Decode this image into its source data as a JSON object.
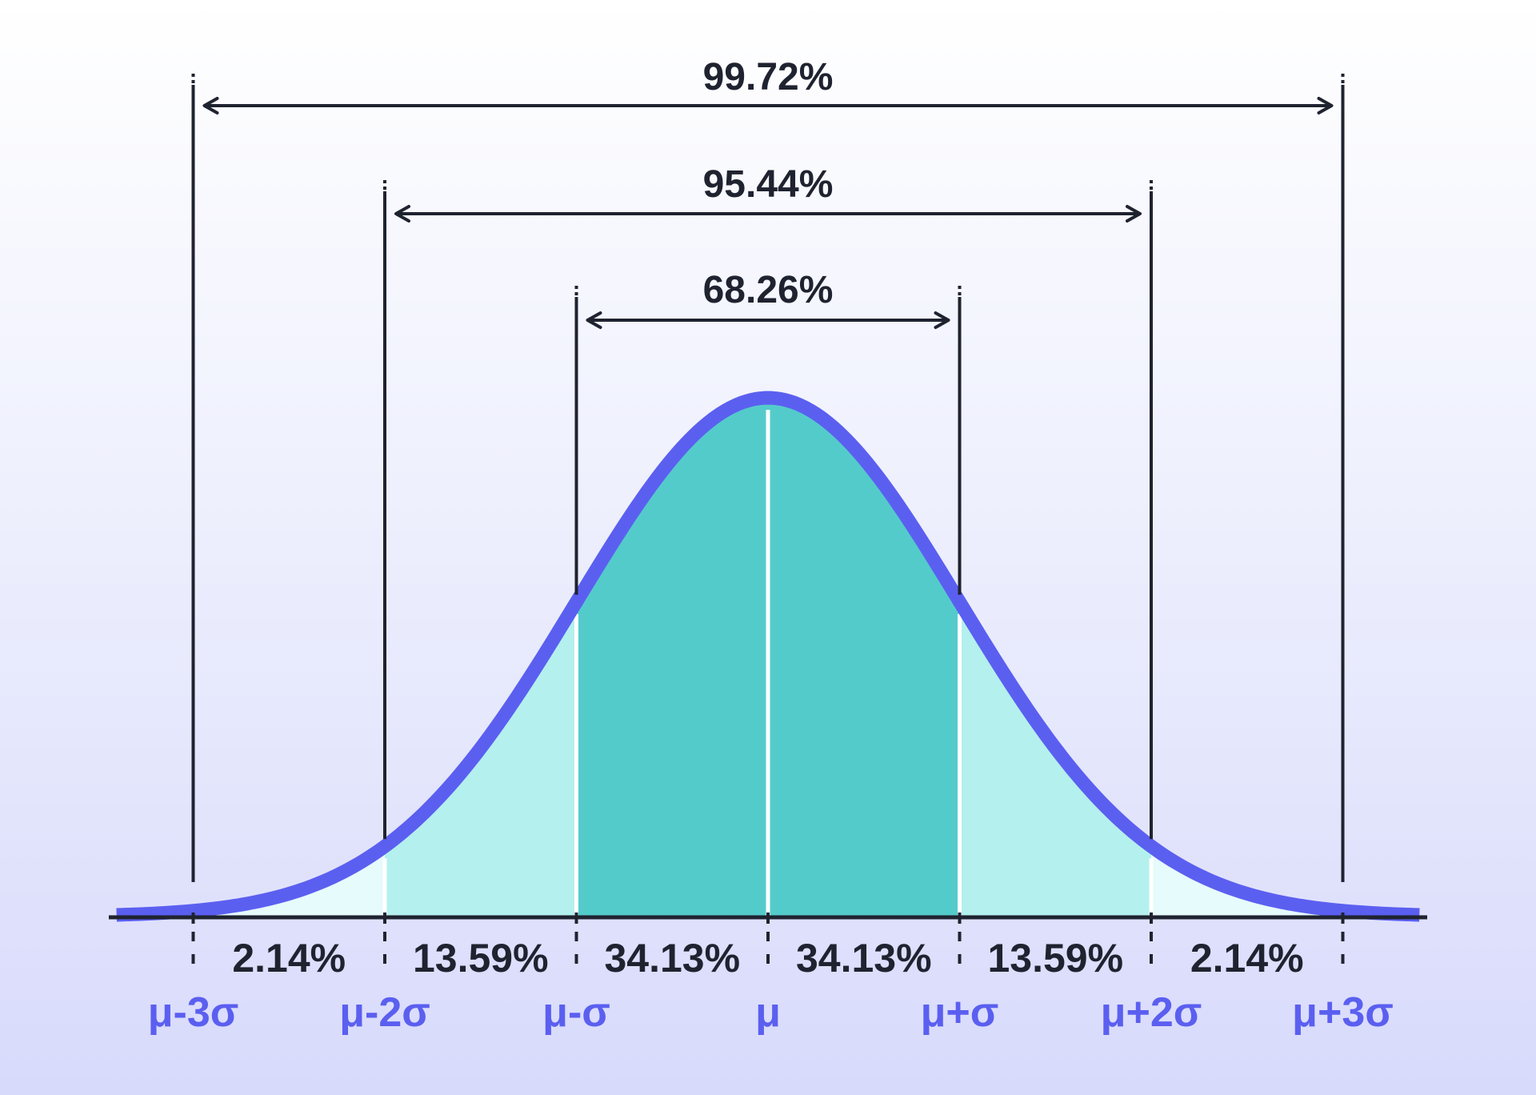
{
  "chart_data": {
    "type": "area",
    "title": "",
    "distribution": "normal",
    "x_ticks": [
      -3,
      -2,
      -1,
      0,
      1,
      2,
      3
    ],
    "tick_labels": [
      "μ-3σ",
      "μ-2σ",
      "μ-σ",
      "μ",
      "μ+σ",
      "μ+2σ",
      "μ+3σ"
    ],
    "bands": [
      {
        "from": -3,
        "to": -2,
        "label": "2.14%",
        "value": 2.14
      },
      {
        "from": -2,
        "to": -1,
        "label": "13.59%",
        "value": 13.59
      },
      {
        "from": -1,
        "to": 0,
        "label": "34.13%",
        "value": 34.13
      },
      {
        "from": 0,
        "to": 1,
        "label": "34.13%",
        "value": 34.13
      },
      {
        "from": 1,
        "to": 2,
        "label": "13.59%",
        "value": 13.59
      },
      {
        "from": 2,
        "to": 3,
        "label": "2.14%",
        "value": 2.14
      }
    ],
    "intervals": [
      {
        "sigma": 1,
        "label": "68.26%",
        "value": 68.26
      },
      {
        "sigma": 2,
        "label": "95.44%",
        "value": 95.44
      },
      {
        "sigma": 3,
        "label": "99.72%",
        "value": 99.72
      }
    ],
    "xlim": [
      -3.4,
      3.4
    ],
    "colors": {
      "curve": "#5b5ff0",
      "inner_fill": "#54cbcb",
      "outer_fill": "#b4f0ee",
      "tail_fill": "#e6fbfb",
      "tick_label": "#5b5ff0",
      "ink": "#1f2330"
    }
  }
}
